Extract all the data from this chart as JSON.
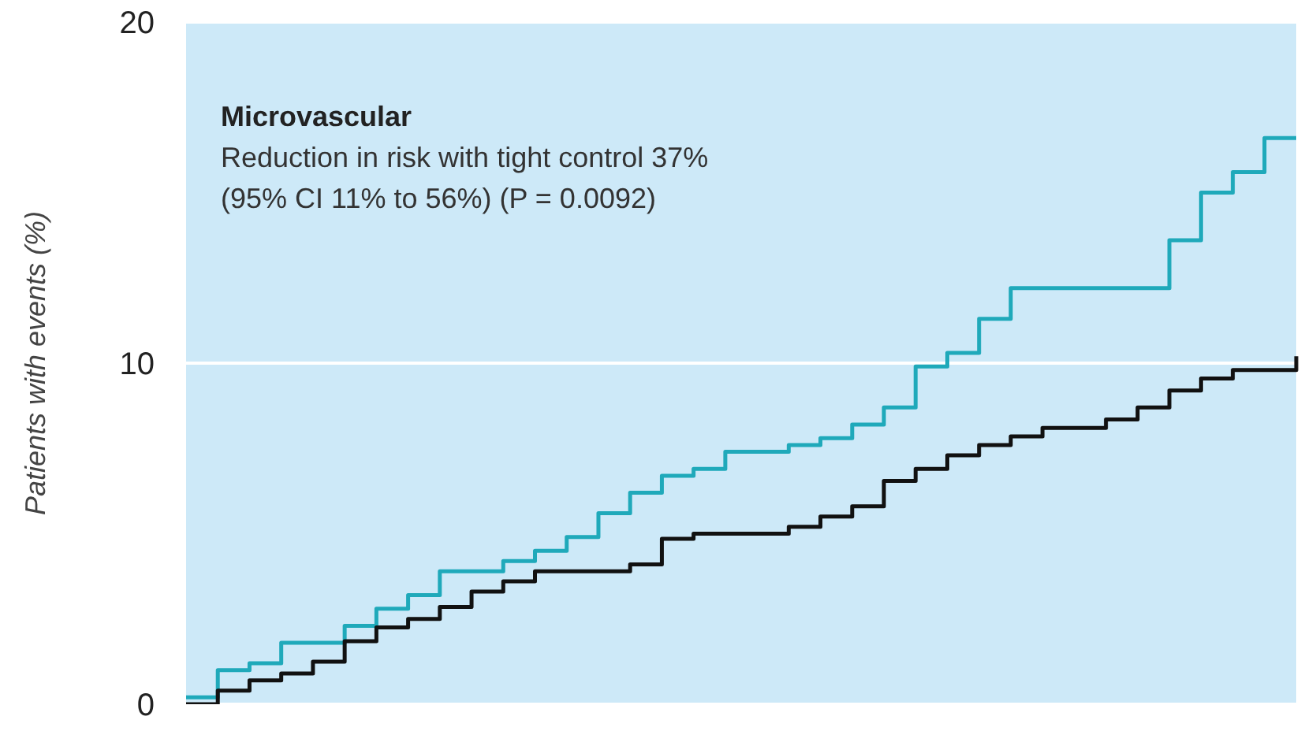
{
  "chart_data": {
    "type": "step",
    "title": "Microvascular",
    "annotations": [
      "Reduction in risk with tight control 37%",
      "(95% CI 11% to 56%) (P = 0.0092)"
    ],
    "ylabel": "Patients with events (%)",
    "categories": [
      null,
      null,
      null,
      null,
      null,
      null,
      null,
      null,
      null,
      null,
      null,
      null,
      null,
      null,
      null,
      null,
      null,
      null,
      null,
      null,
      null,
      null,
      null,
      null,
      null,
      null,
      null,
      null,
      null,
      null,
      null,
      null,
      null,
      null,
      null,
      null
    ],
    "series": [
      {
        "color": "#1fa9ba",
        "values": [
          0.2,
          1.0,
          1.2,
          1.8,
          1.8,
          2.3,
          2.8,
          3.2,
          3.9,
          3.9,
          4.2,
          4.5,
          4.9,
          5.6,
          6.2,
          6.7,
          6.9,
          7.4,
          7.4,
          7.6,
          7.8,
          8.2,
          8.7,
          9.9,
          10.3,
          11.3,
          12.2,
          12.2,
          12.2,
          12.2,
          12.2,
          13.6,
          15.0,
          15.6,
          16.6,
          16.6
        ]
      },
      {
        "color": "#111111",
        "values": [
          0,
          0.4,
          0.7,
          0.9,
          1.25,
          1.85,
          2.25,
          2.5,
          2.85,
          3.3,
          3.6,
          3.9,
          3.9,
          3.9,
          4.1,
          4.85,
          5.0,
          5.0,
          5.0,
          5.2,
          5.5,
          5.8,
          6.55,
          6.9,
          7.3,
          7.6,
          7.85,
          8.1,
          8.1,
          8.35,
          8.7,
          9.2,
          9.55,
          9.8,
          9.8,
          10.2
        ]
      }
    ],
    "ylim": [
      0,
      20
    ],
    "yticks": [
      0,
      10,
      20
    ],
    "grid": "y",
    "line_style": "solid"
  }
}
